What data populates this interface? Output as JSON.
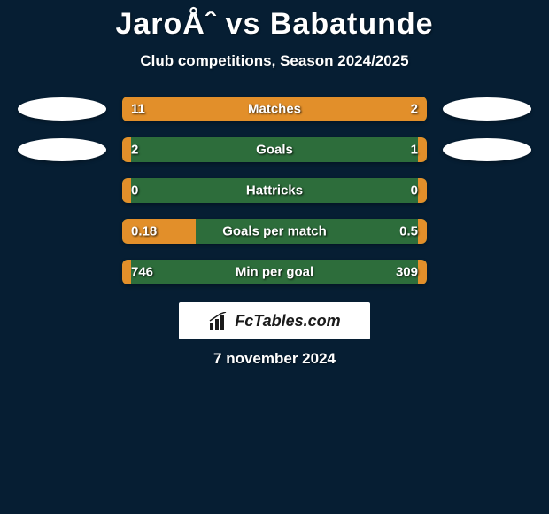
{
  "header": {
    "title": "JaroÅˆ vs Babatunde",
    "subtitle": "Club competitions, Season 2024/2025"
  },
  "colors": {
    "background": "#061e33",
    "bar_base": "#2d6d3b",
    "bar_highlight": "#e28f2a",
    "ellipse": "#ffffff",
    "text": "#ffffff"
  },
  "stats": [
    {
      "label": "Matches",
      "left_value": "11",
      "right_value": "2",
      "left_pct": 77,
      "right_pct": 23,
      "show_left_ellipse": true,
      "show_right_ellipse": true
    },
    {
      "label": "Goals",
      "left_value": "2",
      "right_value": "1",
      "left_pct": 3,
      "right_pct": 3,
      "show_left_ellipse": true,
      "show_right_ellipse": true
    },
    {
      "label": "Hattricks",
      "left_value": "0",
      "right_value": "0",
      "left_pct": 3,
      "right_pct": 3,
      "show_left_ellipse": false,
      "show_right_ellipse": false
    },
    {
      "label": "Goals per match",
      "left_value": "0.18",
      "right_value": "0.5",
      "left_pct": 24,
      "right_pct": 3,
      "show_left_ellipse": false,
      "show_right_ellipse": false
    },
    {
      "label": "Min per goal",
      "left_value": "746",
      "right_value": "309",
      "left_pct": 3,
      "right_pct": 3,
      "show_left_ellipse": false,
      "show_right_ellipse": false
    }
  ],
  "footer": {
    "brand": "FcTables.com",
    "date": "7 november 2024"
  }
}
